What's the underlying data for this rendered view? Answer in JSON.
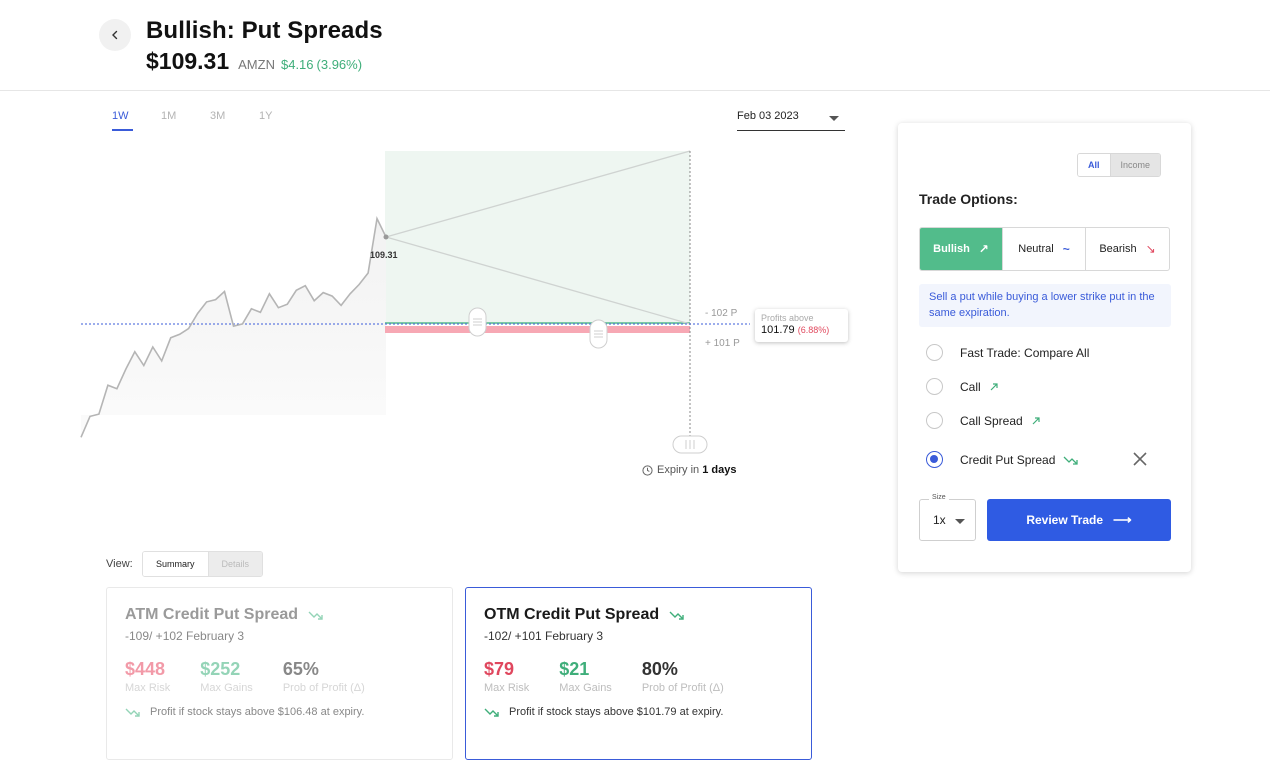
{
  "header": {
    "title": "Bullish: Put Spreads",
    "price": "$109.31",
    "ticker": "AMZN",
    "change_amount": "$4.16",
    "change_percent": "(3.96%)"
  },
  "chart": {
    "time_ranges": [
      "1W",
      "1M",
      "3M",
      "1Y"
    ],
    "active_range": "1W",
    "expiry_date": "Feb 03 2023",
    "current_price_label": "109.31",
    "short_strike_label": "- 102 P",
    "long_strike_label": "+ 101 P",
    "profit_tip_title": "Profits above",
    "profit_tip_value": "101.79",
    "profit_tip_pct": "(6.88%)",
    "expiry_prefix": "Expiry in",
    "expiry_days": "1 days",
    "colors": {
      "line": "#b5b5b5",
      "profit_zone": "#eef6f1",
      "loss_zone": "#f7a8b4",
      "breakeven": "#3a5bd9"
    },
    "price_series": [
      92.0,
      93.8,
      94.0,
      96.5,
      96.2,
      97.9,
      99.4,
      98.2,
      99.8,
      98.6,
      100.6,
      100.9,
      101.4,
      102.7,
      103.7,
      103.9,
      104.6,
      101.6,
      101.8,
      103.1,
      102.8,
      104.4,
      103.2,
      103.5,
      104.7,
      105.1,
      103.8,
      104.5,
      104.2,
      103.4,
      104.4,
      105.2,
      106.2,
      110.9,
      109.31
    ]
  },
  "view": {
    "label": "View:",
    "options": [
      "Summary",
      "Details"
    ],
    "active": "Summary"
  },
  "cards": {
    "atm": {
      "title": "ATM Credit Put Spread",
      "subtitle": "-109/ +102 February 3",
      "max_risk": "$448",
      "max_risk_label": "Max Risk",
      "max_gains": "$252",
      "max_gains_label": "Max Gains",
      "prob": "65%",
      "prob_label": "Prob of Profit (Δ)",
      "note": "Profit if stock stays above $106.48 at expiry."
    },
    "otm": {
      "title": "OTM Credit Put Spread",
      "subtitle": "-102/ +101 February 3",
      "max_risk": "$79",
      "max_risk_label": "Max Risk",
      "max_gains": "$21",
      "max_gains_label": "Max Gains",
      "prob": "80%",
      "prob_label": "Prob of Profit (Δ)",
      "note": "Profit if stock stays above $101.79 at expiry."
    }
  },
  "panel": {
    "filter_options": [
      "All",
      "Income"
    ],
    "filter_active": "All",
    "title": "Trade Options:",
    "sentiments": [
      {
        "label": "Bullish",
        "icon": "↗"
      },
      {
        "label": "Neutral",
        "icon": "~"
      },
      {
        "label": "Bearish",
        "icon": "↘"
      }
    ],
    "sentiment_active": "Bullish",
    "description": "Sell a put while buying a lower strike put in the same expiration.",
    "options": [
      {
        "label": "Fast Trade: Compare All",
        "checked": false
      },
      {
        "label": "Call",
        "checked": false
      },
      {
        "label": "Call Spread",
        "checked": false
      },
      {
        "label": "Credit Put Spread",
        "checked": true
      }
    ],
    "size_label": "Size",
    "size_value": "1x",
    "review_label": "Review Trade"
  }
}
